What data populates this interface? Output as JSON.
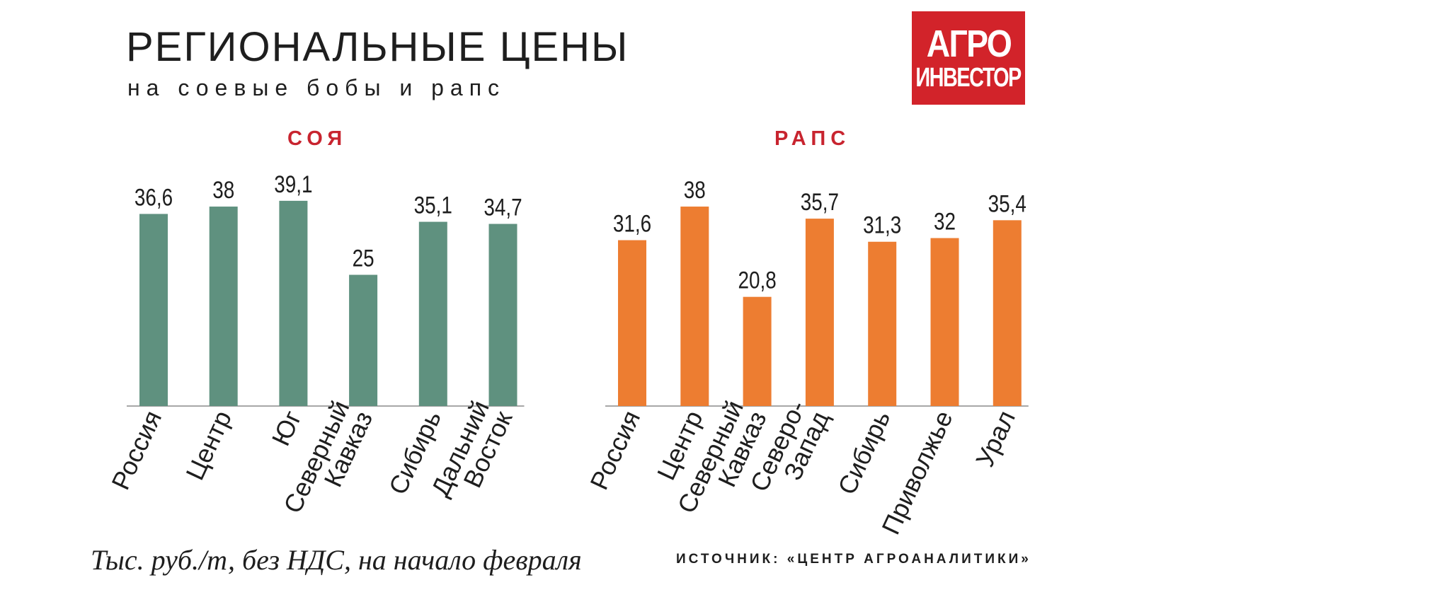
{
  "header": {
    "title": "РЕГИОНАЛЬНЫЕ ЦЕНЫ",
    "subtitle": "на соевые бобы и рапс"
  },
  "logo": {
    "line1": "АГРО",
    "line2": "ИНВЕСТОР"
  },
  "colors": {
    "soy": "#5f917f",
    "rapeseed": "#ed7d31",
    "accent": "#c8242f",
    "logo_bg": "#d2232a"
  },
  "chart_data": [
    {
      "type": "bar",
      "title": "СОЯ",
      "categories": [
        "Россия",
        "Центр",
        "Юг",
        "Северный Кавказ",
        "Сибирь",
        "Дальний Восток"
      ],
      "category_lines": [
        [
          "Россия"
        ],
        [
          "Центр"
        ],
        [
          "Юг"
        ],
        [
          "Северный",
          "Кавказ"
        ],
        [
          "Сибирь"
        ],
        [
          "Дальний",
          "Восток"
        ]
      ],
      "values": [
        36.6,
        38,
        39.1,
        25,
        35.1,
        34.7
      ],
      "value_labels": [
        "36,6",
        "38",
        "39,1",
        "25",
        "35,1",
        "34,7"
      ],
      "grid": false,
      "legend": "none"
    },
    {
      "type": "bar",
      "title": "РАПС",
      "categories": [
        "Россия",
        "Центр",
        "Северный Кавказ",
        "Северо-Запад",
        "Сибирь",
        "Приволжье",
        "Урал"
      ],
      "category_lines": [
        [
          "Россия"
        ],
        [
          "Центр"
        ],
        [
          "Северный",
          "Кавказ"
        ],
        [
          "Северо-",
          "Запад"
        ],
        [
          "Сибирь"
        ],
        [
          "Приволжье"
        ],
        [
          "Урал"
        ]
      ],
      "values": [
        31.6,
        38,
        20.8,
        35.7,
        31.3,
        32,
        35.4
      ],
      "value_labels": [
        "31,6",
        "38",
        "20,8",
        "35,7",
        "31,3",
        "32",
        "35,4"
      ],
      "grid": false,
      "legend": "none"
    }
  ],
  "footer": {
    "note": "Тыс. руб./т, без НДС, на начало февраля",
    "source": "ИСТОЧНИК: «ЦЕНТР АГРОАНАЛИТИКИ»"
  }
}
